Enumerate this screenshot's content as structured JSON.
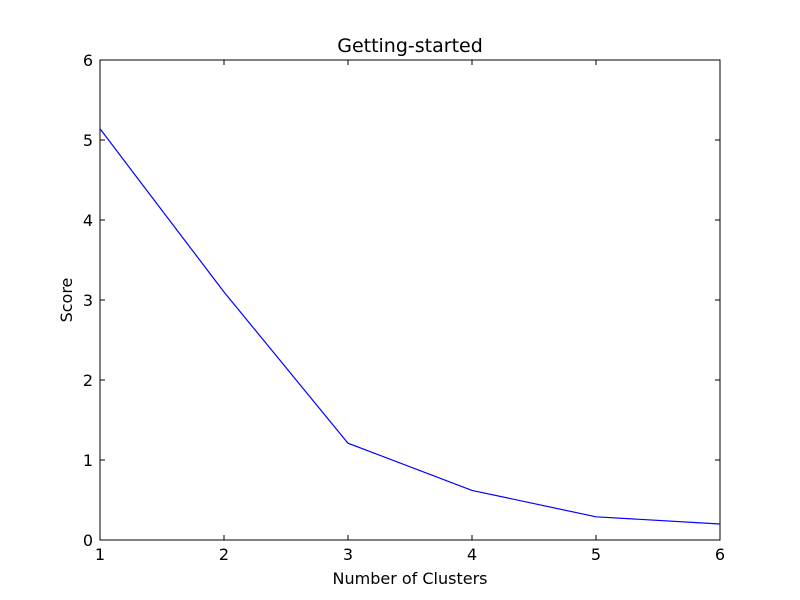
{
  "chart_data": {
    "type": "line",
    "title": "Getting-started",
    "xlabel": "Number of Clusters",
    "ylabel": "Score",
    "xlim": [
      1,
      6
    ],
    "ylim": [
      0,
      6
    ],
    "xticks": [
      1,
      2,
      3,
      4,
      5,
      6
    ],
    "yticks": [
      0,
      1,
      2,
      3,
      4,
      5,
      6
    ],
    "grid": false,
    "series": [
      {
        "color": "#0000ff",
        "x": [
          1,
          2,
          3,
          4,
          5,
          6
        ],
        "y": [
          5.14,
          3.1,
          1.21,
          0.62,
          0.29,
          0.2
        ]
      }
    ]
  }
}
